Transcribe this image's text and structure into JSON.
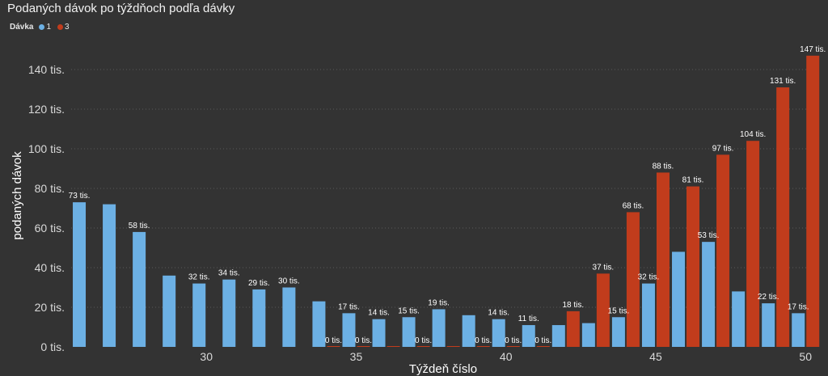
{
  "chart_data": {
    "type": "bar",
    "title": "Podaných dávok po týždňoch podľa dávky",
    "legend_title": "Dávka",
    "xlabel": "Týždeň číslo",
    "ylabel": "podaných dávok",
    "ylim": [
      0,
      150
    ],
    "y_ticks": [
      0,
      20,
      40,
      60,
      80,
      100,
      120,
      140
    ],
    "y_tick_labels": [
      "0 tis.",
      "20 tis.",
      "40 tis.",
      "60 tis.",
      "80 tis.",
      "100 tis.",
      "120 tis.",
      "140 tis."
    ],
    "x_ticks": [
      30,
      35,
      40,
      45,
      50
    ],
    "grid": true,
    "legend_position": "top-left",
    "x": [
      26,
      27,
      28,
      29,
      30,
      31,
      32,
      33,
      34,
      35,
      36,
      37,
      38,
      39,
      40,
      41,
      42,
      43,
      44,
      45,
      46,
      47,
      48,
      49,
      50
    ],
    "series": [
      {
        "name": "1",
        "color": "#6cb0e4",
        "values": [
          73,
          72,
          58,
          36,
          32,
          34,
          29,
          30,
          23,
          17,
          14,
          15,
          19,
          16,
          14,
          11,
          11,
          12,
          15,
          32,
          48,
          53,
          28,
          22,
          17
        ],
        "labels": [
          "73 tis.",
          null,
          "58 tis.",
          null,
          "32 tis.",
          "34 tis.",
          "29 tis.",
          "30 tis.",
          null,
          "17 tis.",
          "14 tis.",
          "15 tis.",
          "19 tis.",
          null,
          "14 tis.",
          "11 tis.",
          null,
          null,
          "15 tis.",
          "32 tis.",
          null,
          "53 tis.",
          null,
          "22 tis.",
          "17 tis."
        ]
      },
      {
        "name": "3",
        "color": "#c13c1c",
        "values": [
          null,
          null,
          null,
          null,
          null,
          null,
          null,
          null,
          0,
          0,
          0,
          0,
          0,
          0,
          0,
          0,
          18,
          37,
          68,
          88,
          81,
          97,
          104,
          131,
          147
        ],
        "labels": [
          null,
          null,
          null,
          null,
          null,
          null,
          null,
          null,
          "0 tis.",
          "0 tis.",
          null,
          "0 tis.",
          null,
          "0 tis.",
          "0 tis.",
          "0 tis.",
          "18 tis.",
          "37 tis.",
          "68 tis.",
          "88 tis.",
          "81 tis.",
          "97 tis.",
          "104 tis.",
          "131 tis.",
          "147 tis."
        ]
      }
    ]
  }
}
